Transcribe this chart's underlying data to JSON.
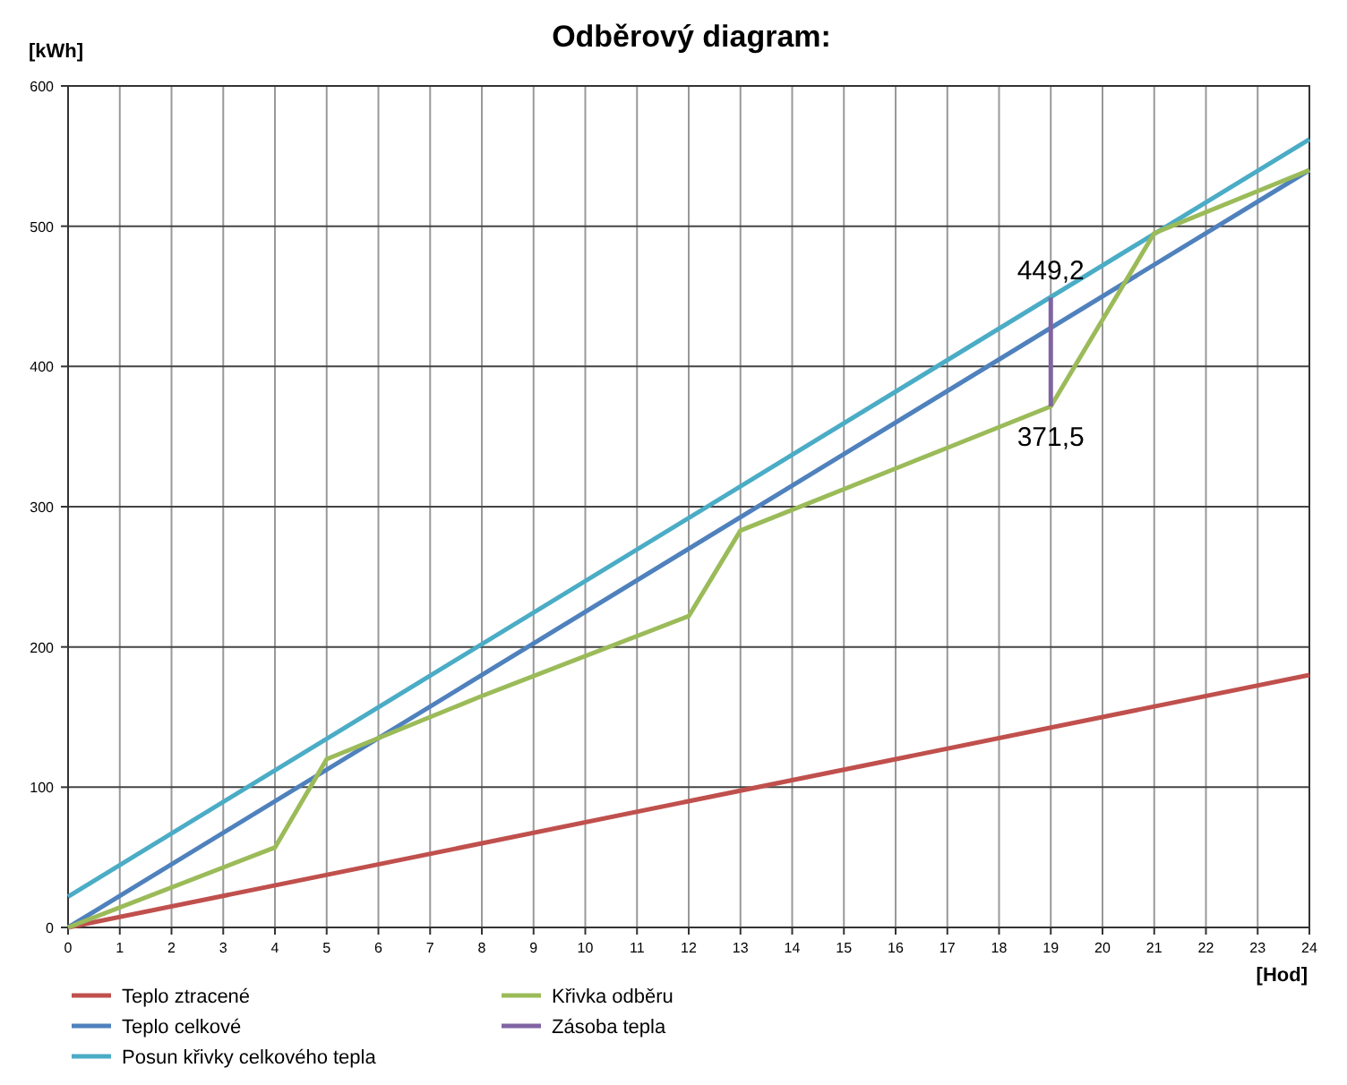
{
  "chart_data": {
    "type": "line",
    "title": "Odběrový diagram:",
    "xlabel": "[Hod]",
    "ylabel": "[kWh]",
    "xlim": [
      0,
      24
    ],
    "xticks": [
      0,
      1,
      2,
      3,
      4,
      5,
      6,
      7,
      8,
      9,
      10,
      11,
      12,
      13,
      14,
      15,
      16,
      17,
      18,
      19,
      20,
      21,
      22,
      23,
      24
    ],
    "ylim": [
      0,
      600
    ],
    "yticks": [
      0,
      100,
      200,
      300,
      400,
      500,
      600
    ],
    "grid": true,
    "legend": "bottom",
    "marker": "none",
    "line_style": "solid",
    "series": [
      {
        "name": "Teplo ztracené",
        "color": "#c0504d",
        "x": [
          0,
          24
        ],
        "values": [
          0,
          180
        ]
      },
      {
        "name": "Teplo celkové",
        "color": "#4f81bd",
        "x": [
          0,
          24
        ],
        "values": [
          0,
          540
        ]
      },
      {
        "name": "Posun křivky celkového tepla",
        "color": "#4bacc6",
        "x": [
          0,
          24
        ],
        "values": [
          22,
          562
        ]
      },
      {
        "name": "Křivka odběru",
        "color": "#9bbb59",
        "x": [
          0,
          4,
          5,
          8,
          12,
          13,
          17,
          19,
          21,
          24
        ],
        "values": [
          0,
          57,
          120,
          165,
          222,
          283,
          342,
          371.5,
          495,
          540
        ]
      },
      {
        "name": "Zásoba tepla",
        "color": "#8064a2",
        "x": [
          19,
          19
        ],
        "values": [
          371.5,
          449.2
        ]
      }
    ],
    "annotations": [
      {
        "text": "449,2",
        "x": 19,
        "y": 449.2
      },
      {
        "text": "371,5",
        "x": 19,
        "y": 371.5
      }
    ]
  }
}
